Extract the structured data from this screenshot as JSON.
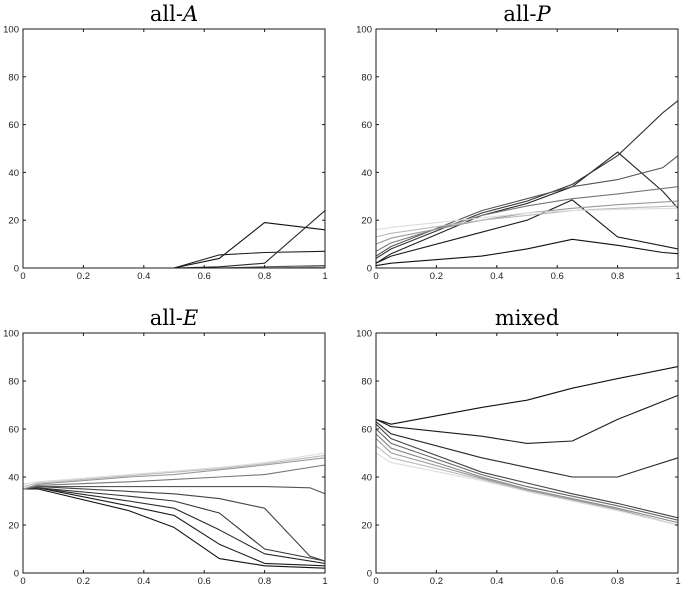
{
  "chart_data": [
    {
      "type": "line",
      "title": "all-A",
      "title_parts": {
        "prefix": "all-",
        "var": "A"
      },
      "xlim": [
        0,
        1
      ],
      "ylim": [
        0,
        100
      ],
      "xticks": [
        0,
        0.2,
        0.4,
        0.6,
        0.8,
        1
      ],
      "xtick_labels": [
        "0",
        "0.2",
        "0.4",
        "0.6",
        "0.8",
        "1"
      ],
      "yticks": [
        0,
        20,
        40,
        60,
        80,
        100
      ],
      "ytick_labels": [
        "0",
        "20",
        "40",
        "60",
        "80",
        "100"
      ],
      "series": [
        {
          "color": "#111111",
          "x": [
            0,
            0.05,
            0.35,
            0.5,
            0.65,
            0.8,
            1
          ],
          "y": [
            0,
            0,
            0,
            0,
            4,
            19,
            16
          ]
        },
        {
          "color": "#1c1c1c",
          "x": [
            0,
            0.05,
            0.35,
            0.5,
            0.65,
            0.8,
            1
          ],
          "y": [
            0,
            0,
            0,
            0,
            5.5,
            6.5,
            7
          ]
        },
        {
          "color": "#2a2a2a",
          "x": [
            0,
            0.05,
            0.35,
            0.5,
            0.65,
            0.8,
            1
          ],
          "y": [
            0,
            0,
            0,
            0,
            0.5,
            2,
            24
          ]
        },
        {
          "color": "#555555",
          "x": [
            0,
            0.05,
            0.35,
            0.5,
            0.65,
            0.8,
            1
          ],
          "y": [
            0,
            0,
            0,
            0,
            0,
            0.5,
            1
          ]
        },
        {
          "color": "#999999",
          "x": [
            0,
            0.05,
            0.35,
            0.5,
            0.65,
            0.8,
            1
          ],
          "y": [
            0,
            0,
            0,
            0,
            0,
            0,
            0.5
          ]
        },
        {
          "color": "#cccccc",
          "x": [
            0,
            0.05,
            0.35,
            0.5,
            0.65,
            0.8,
            1
          ],
          "y": [
            0,
            0,
            0,
            0,
            0,
            0,
            0
          ]
        }
      ]
    },
    {
      "type": "line",
      "title": "all-P",
      "title_parts": {
        "prefix": "all-",
        "var": "P"
      },
      "xlim": [
        0,
        1
      ],
      "ylim": [
        0,
        100
      ],
      "xticks": [
        0,
        0.2,
        0.4,
        0.6,
        0.8,
        1
      ],
      "xtick_labels": [
        "0",
        "0.2",
        "0.4",
        "0.6",
        "0.8",
        "1"
      ],
      "yticks": [
        0,
        20,
        40,
        60,
        80,
        100
      ],
      "ytick_labels": [
        "0",
        "20",
        "40",
        "60",
        "80",
        "100"
      ],
      "series": [
        {
          "color": "#111111",
          "x": [
            0,
            0.05,
            0.35,
            0.5,
            0.65,
            0.8,
            0.95,
            1
          ],
          "y": [
            1,
            2,
            5,
            8,
            12,
            9.5,
            6.5,
            6
          ]
        },
        {
          "color": "#1c1c1c",
          "x": [
            0,
            0.05,
            0.35,
            0.5,
            0.65,
            0.8,
            1
          ],
          "y": [
            2,
            5,
            15,
            20,
            28.5,
            13,
            8
          ]
        },
        {
          "color": "#222222",
          "x": [
            0,
            0.05,
            0.35,
            0.5,
            0.65,
            0.8,
            0.95,
            1
          ],
          "y": [
            2,
            6,
            22,
            27,
            34,
            48.5,
            32,
            25
          ]
        },
        {
          "color": "#333333",
          "x": [
            0,
            0.05,
            0.35,
            0.5,
            0.65,
            0.8,
            0.95,
            1
          ],
          "y": [
            4,
            8,
            23,
            28,
            35,
            47,
            65,
            70
          ]
        },
        {
          "color": "#555555",
          "x": [
            0,
            0.05,
            0.35,
            0.5,
            0.65,
            0.8,
            0.95,
            1
          ],
          "y": [
            5,
            9,
            24,
            29,
            34,
            37,
            42,
            47
          ]
        },
        {
          "color": "#777777",
          "x": [
            0,
            0.05,
            0.35,
            0.5,
            0.65,
            0.8,
            1
          ],
          "y": [
            7,
            10.5,
            22,
            26,
            29,
            31,
            34
          ]
        },
        {
          "color": "#999999",
          "x": [
            0,
            0.05,
            0.35,
            0.5,
            0.65,
            0.8,
            1
          ],
          "y": [
            10,
            12.5,
            20,
            23,
            25,
            26.5,
            28
          ]
        },
        {
          "color": "#bbbbbb",
          "x": [
            0,
            0.05,
            0.35,
            0.5,
            0.65,
            0.8,
            1
          ],
          "y": [
            13,
            14.5,
            20,
            22,
            24,
            25,
            26
          ]
        },
        {
          "color": "#dddddd",
          "x": [
            0,
            0.05,
            0.35,
            0.5,
            0.65,
            0.8,
            1
          ],
          "y": [
            16,
            17,
            21,
            23,
            24,
            24.5,
            25
          ]
        }
      ]
    },
    {
      "type": "line",
      "title": "all-E",
      "title_parts": {
        "prefix": "all-",
        "var": "E"
      },
      "xlim": [
        0,
        1
      ],
      "ylim": [
        0,
        100
      ],
      "xticks": [
        0,
        0.2,
        0.4,
        0.6,
        0.8,
        1
      ],
      "xtick_labels": [
        "0",
        "0.2",
        "0.4",
        "0.6",
        "0.8",
        "1"
      ],
      "yticks": [
        0,
        20,
        40,
        60,
        80,
        100
      ],
      "ytick_labels": [
        "0",
        "20",
        "40",
        "60",
        "80",
        "100"
      ],
      "series": [
        {
          "color": "#111111",
          "x": [
            0,
            0.05,
            0.35,
            0.5,
            0.65,
            0.8,
            1
          ],
          "y": [
            35,
            35,
            26,
            19,
            6,
            3,
            2
          ]
        },
        {
          "color": "#1c1c1c",
          "x": [
            0,
            0.05,
            0.35,
            0.5,
            0.65,
            0.8,
            1
          ],
          "y": [
            35,
            35.5,
            28,
            24,
            12,
            4,
            3
          ]
        },
        {
          "color": "#2a2a2a",
          "x": [
            0,
            0.05,
            0.35,
            0.5,
            0.65,
            0.8,
            1
          ],
          "y": [
            35,
            35.5,
            30,
            27,
            18,
            8,
            4
          ]
        },
        {
          "color": "#333333",
          "x": [
            0,
            0.05,
            0.35,
            0.5,
            0.65,
            0.8,
            1
          ],
          "y": [
            35,
            35.5,
            32,
            30,
            25,
            10,
            5
          ]
        },
        {
          "color": "#444444",
          "x": [
            0,
            0.05,
            0.35,
            0.5,
            0.65,
            0.8,
            0.95,
            1
          ],
          "y": [
            35,
            36,
            34,
            33,
            31,
            27,
            7,
            5
          ]
        },
        {
          "color": "#555555",
          "x": [
            0,
            0.05,
            0.35,
            0.5,
            0.65,
            0.8,
            0.95,
            1
          ],
          "y": [
            35,
            36,
            36,
            36,
            36,
            36,
            35.5,
            33
          ]
        },
        {
          "color": "#777777",
          "x": [
            0,
            0.05,
            0.35,
            0.5,
            0.65,
            0.8,
            1
          ],
          "y": [
            35,
            36.5,
            38,
            39,
            40,
            41,
            45
          ]
        },
        {
          "color": "#999999",
          "x": [
            0,
            0.05,
            0.35,
            0.5,
            0.65,
            0.8,
            1
          ],
          "y": [
            35,
            37,
            40,
            41,
            43,
            45,
            48
          ]
        },
        {
          "color": "#bbbbbb",
          "x": [
            0,
            0.05,
            0.35,
            0.5,
            0.65,
            0.8,
            1
          ],
          "y": [
            36,
            37.5,
            40.5,
            42,
            43.5,
            45.5,
            49
          ]
        },
        {
          "color": "#dddddd",
          "x": [
            0,
            0.05,
            0.35,
            0.5,
            0.65,
            0.8,
            1
          ],
          "y": [
            37,
            38,
            41,
            42.5,
            44,
            46,
            50
          ]
        }
      ]
    },
    {
      "type": "line",
      "title": "mixed",
      "title_parts": {
        "prefix": "mixed",
        "var": ""
      },
      "xlim": [
        0,
        1
      ],
      "ylim": [
        0,
        100
      ],
      "xticks": [
        0,
        0.2,
        0.4,
        0.6,
        0.8,
        1
      ],
      "xtick_labels": [
        "0",
        "0.2",
        "0.4",
        "0.6",
        "0.8",
        "1"
      ],
      "yticks": [
        0,
        20,
        40,
        60,
        80,
        100
      ],
      "ytick_labels": [
        "0",
        "20",
        "40",
        "60",
        "80",
        "100"
      ],
      "series": [
        {
          "color": "#111111",
          "x": [
            0,
            0.05,
            0.35,
            0.5,
            0.65,
            0.8,
            1
          ],
          "y": [
            64,
            62,
            69,
            72,
            77,
            81,
            86
          ]
        },
        {
          "color": "#1c1c1c",
          "x": [
            0,
            0.05,
            0.35,
            0.5,
            0.65,
            0.8,
            1
          ],
          "y": [
            64,
            61,
            57,
            54,
            55,
            64,
            74
          ]
        },
        {
          "color": "#2a2a2a",
          "x": [
            0,
            0.05,
            0.35,
            0.5,
            0.65,
            0.8,
            1
          ],
          "y": [
            63,
            58,
            48,
            44,
            40,
            40,
            48
          ]
        },
        {
          "color": "#444444",
          "x": [
            0,
            0.05,
            0.35,
            0.5,
            0.65,
            0.8,
            1
          ],
          "y": [
            62,
            56,
            42,
            37.5,
            33,
            29,
            23
          ]
        },
        {
          "color": "#666666",
          "x": [
            0,
            0.05,
            0.35,
            0.5,
            0.65,
            0.8,
            1
          ],
          "y": [
            60,
            54,
            41,
            36,
            32,
            28,
            22
          ]
        },
        {
          "color": "#888888",
          "x": [
            0,
            0.05,
            0.35,
            0.5,
            0.65,
            0.8,
            1
          ],
          "y": [
            58,
            52,
            40,
            35,
            31,
            27,
            21
          ]
        },
        {
          "color": "#999999",
          "x": [
            0,
            0.05,
            0.35,
            0.5,
            0.65,
            0.8,
            1
          ],
          "y": [
            56,
            50,
            39.5,
            34.5,
            30.5,
            26.5,
            20
          ]
        },
        {
          "color": "#bbbbbb",
          "x": [
            0,
            0.05,
            0.35,
            0.5,
            0.65,
            0.8,
            1
          ],
          "y": [
            53,
            48,
            39,
            34,
            30,
            26,
            20
          ]
        },
        {
          "color": "#dddddd",
          "x": [
            0,
            0.05,
            0.35,
            0.5,
            0.65,
            0.8,
            1
          ],
          "y": [
            50,
            46,
            38.5,
            34,
            30,
            26,
            20
          ]
        }
      ]
    }
  ]
}
